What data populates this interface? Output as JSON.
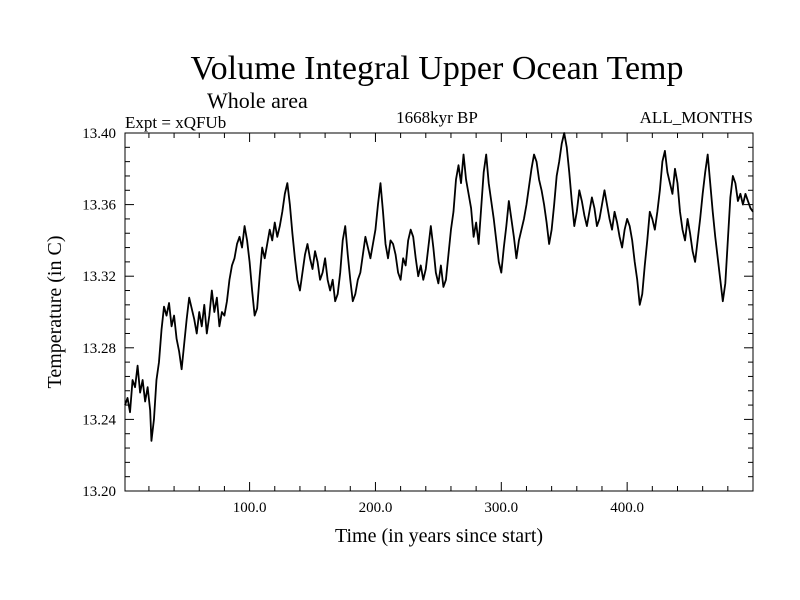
{
  "chart_data": {
    "type": "line",
    "title": "Volume Integral Upper Ocean Temp",
    "subtitle": "Whole area",
    "left_label": "Expt = xQFUb",
    "center_label": "1668kyr BP",
    "right_label": "ALL_MONTHS",
    "xlabel": "Time (in years since start)",
    "ylabel": "Temperature (in C)",
    "xlim": [
      1,
      500
    ],
    "ylim": [
      13.2,
      13.4
    ],
    "x_ticks": [
      {
        "value": 100,
        "label": "100.0"
      },
      {
        "value": 200,
        "label": "200.0"
      },
      {
        "value": 300,
        "label": "300.0"
      },
      {
        "value": 400,
        "label": "400.0"
      }
    ],
    "y_ticks": [
      {
        "value": 13.2,
        "label": "13.20"
      },
      {
        "value": 13.24,
        "label": "13.24"
      },
      {
        "value": 13.28,
        "label": "13.28"
      },
      {
        "value": 13.32,
        "label": "13.32"
      },
      {
        "value": 13.36,
        "label": "13.36"
      },
      {
        "value": 13.4,
        "label": "13.40"
      }
    ],
    "series": [
      {
        "name": "Volume Integral Upper Ocean Temp",
        "color": "#000000",
        "points": [
          [
            1,
            13.248
          ],
          [
            3,
            13.252
          ],
          [
            5,
            13.244
          ],
          [
            7,
            13.262
          ],
          [
            9,
            13.258
          ],
          [
            11,
            13.27
          ],
          [
            13,
            13.255
          ],
          [
            15,
            13.262
          ],
          [
            17,
            13.25
          ],
          [
            19,
            13.258
          ],
          [
            21,
            13.245
          ],
          [
            22,
            13.228
          ],
          [
            24,
            13.24
          ],
          [
            26,
            13.262
          ],
          [
            28,
            13.272
          ],
          [
            30,
            13.29
          ],
          [
            32,
            13.303
          ],
          [
            34,
            13.298
          ],
          [
            36,
            13.305
          ],
          [
            38,
            13.292
          ],
          [
            40,
            13.298
          ],
          [
            42,
            13.285
          ],
          [
            44,
            13.278
          ],
          [
            46,
            13.268
          ],
          [
            48,
            13.282
          ],
          [
            50,
            13.296
          ],
          [
            52,
            13.308
          ],
          [
            54,
            13.302
          ],
          [
            56,
            13.296
          ],
          [
            58,
            13.288
          ],
          [
            60,
            13.3
          ],
          [
            62,
            13.292
          ],
          [
            64,
            13.304
          ],
          [
            66,
            13.288
          ],
          [
            68,
            13.298
          ],
          [
            70,
            13.312
          ],
          [
            72,
            13.3
          ],
          [
            74,
            13.308
          ],
          [
            76,
            13.292
          ],
          [
            78,
            13.3
          ],
          [
            80,
            13.298
          ],
          [
            82,
            13.306
          ],
          [
            84,
            13.318
          ],
          [
            86,
            13.326
          ],
          [
            88,
            13.33
          ],
          [
            90,
            13.338
          ],
          [
            92,
            13.342
          ],
          [
            94,
            13.336
          ],
          [
            96,
            13.348
          ],
          [
            98,
            13.34
          ],
          [
            100,
            13.328
          ],
          [
            102,
            13.312
          ],
          [
            104,
            13.298
          ],
          [
            106,
            13.302
          ],
          [
            108,
            13.32
          ],
          [
            110,
            13.336
          ],
          [
            112,
            13.33
          ],
          [
            114,
            13.338
          ],
          [
            116,
            13.346
          ],
          [
            118,
            13.34
          ],
          [
            120,
            13.35
          ],
          [
            122,
            13.342
          ],
          [
            124,
            13.348
          ],
          [
            126,
            13.356
          ],
          [
            128,
            13.366
          ],
          [
            130,
            13.372
          ],
          [
            132,
            13.36
          ],
          [
            134,
            13.344
          ],
          [
            136,
            13.33
          ],
          [
            138,
            13.318
          ],
          [
            140,
            13.312
          ],
          [
            142,
            13.322
          ],
          [
            144,
            13.332
          ],
          [
            146,
            13.338
          ],
          [
            148,
            13.33
          ],
          [
            150,
            13.324
          ],
          [
            152,
            13.334
          ],
          [
            154,
            13.328
          ],
          [
            156,
            13.318
          ],
          [
            158,
            13.322
          ],
          [
            160,
            13.33
          ],
          [
            162,
            13.318
          ],
          [
            164,
            13.312
          ],
          [
            166,
            13.318
          ],
          [
            168,
            13.306
          ],
          [
            170,
            13.31
          ],
          [
            172,
            13.322
          ],
          [
            174,
            13.34
          ],
          [
            176,
            13.348
          ],
          [
            178,
            13.332
          ],
          [
            180,
            13.318
          ],
          [
            182,
            13.306
          ],
          [
            184,
            13.31
          ],
          [
            186,
            13.318
          ],
          [
            188,
            13.322
          ],
          [
            190,
            13.332
          ],
          [
            192,
            13.342
          ],
          [
            194,
            13.336
          ],
          [
            196,
            13.33
          ],
          [
            198,
            13.338
          ],
          [
            200,
            13.346
          ],
          [
            202,
            13.36
          ],
          [
            204,
            13.372
          ],
          [
            206,
            13.356
          ],
          [
            208,
            13.338
          ],
          [
            210,
            13.33
          ],
          [
            212,
            13.34
          ],
          [
            214,
            13.338
          ],
          [
            216,
            13.332
          ],
          [
            218,
            13.322
          ],
          [
            220,
            13.318
          ],
          [
            222,
            13.33
          ],
          [
            224,
            13.326
          ],
          [
            226,
            13.34
          ],
          [
            228,
            13.346
          ],
          [
            230,
            13.342
          ],
          [
            232,
            13.33
          ],
          [
            234,
            13.32
          ],
          [
            236,
            13.326
          ],
          [
            238,
            13.318
          ],
          [
            240,
            13.324
          ],
          [
            242,
            13.336
          ],
          [
            244,
            13.348
          ],
          [
            246,
            13.336
          ],
          [
            248,
            13.322
          ],
          [
            250,
            13.316
          ],
          [
            252,
            13.326
          ],
          [
            254,
            13.314
          ],
          [
            256,
            13.318
          ],
          [
            258,
            13.332
          ],
          [
            260,
            13.346
          ],
          [
            262,
            13.356
          ],
          [
            264,
            13.374
          ],
          [
            266,
            13.382
          ],
          [
            268,
            13.372
          ],
          [
            270,
            13.388
          ],
          [
            272,
            13.374
          ],
          [
            274,
            13.366
          ],
          [
            276,
            13.358
          ],
          [
            278,
            13.342
          ],
          [
            280,
            13.35
          ],
          [
            282,
            13.338
          ],
          [
            284,
            13.358
          ],
          [
            286,
            13.378
          ],
          [
            288,
            13.388
          ],
          [
            290,
            13.372
          ],
          [
            292,
            13.362
          ],
          [
            294,
            13.352
          ],
          [
            296,
            13.34
          ],
          [
            298,
            13.328
          ],
          [
            300,
            13.322
          ],
          [
            302,
            13.336
          ],
          [
            304,
            13.348
          ],
          [
            306,
            13.362
          ],
          [
            308,
            13.352
          ],
          [
            310,
            13.342
          ],
          [
            312,
            13.33
          ],
          [
            314,
            13.34
          ],
          [
            316,
            13.346
          ],
          [
            318,
            13.352
          ],
          [
            320,
            13.36
          ],
          [
            322,
            13.37
          ],
          [
            324,
            13.38
          ],
          [
            326,
            13.388
          ],
          [
            328,
            13.384
          ],
          [
            330,
            13.374
          ],
          [
            332,
            13.368
          ],
          [
            334,
            13.36
          ],
          [
            336,
            13.35
          ],
          [
            338,
            13.338
          ],
          [
            340,
            13.346
          ],
          [
            342,
            13.36
          ],
          [
            344,
            13.376
          ],
          [
            346,
            13.384
          ],
          [
            348,
            13.394
          ],
          [
            350,
            13.4
          ],
          [
            352,
            13.392
          ],
          [
            354,
            13.378
          ],
          [
            356,
            13.362
          ],
          [
            358,
            13.348
          ],
          [
            360,
            13.356
          ],
          [
            362,
            13.368
          ],
          [
            364,
            13.362
          ],
          [
            366,
            13.354
          ],
          [
            368,
            13.348
          ],
          [
            370,
            13.356
          ],
          [
            372,
            13.364
          ],
          [
            374,
            13.358
          ],
          [
            376,
            13.348
          ],
          [
            378,
            13.352
          ],
          [
            380,
            13.36
          ],
          [
            382,
            13.368
          ],
          [
            384,
            13.36
          ],
          [
            386,
            13.352
          ],
          [
            388,
            13.346
          ],
          [
            390,
            13.356
          ],
          [
            392,
            13.35
          ],
          [
            394,
            13.342
          ],
          [
            396,
            13.336
          ],
          [
            398,
            13.346
          ],
          [
            400,
            13.352
          ],
          [
            402,
            13.348
          ],
          [
            404,
            13.34
          ],
          [
            406,
            13.328
          ],
          [
            408,
            13.318
          ],
          [
            410,
            13.304
          ],
          [
            412,
            13.31
          ],
          [
            414,
            13.326
          ],
          [
            416,
            13.34
          ],
          [
            418,
            13.356
          ],
          [
            420,
            13.352
          ],
          [
            422,
            13.346
          ],
          [
            424,
            13.356
          ],
          [
            426,
            13.368
          ],
          [
            428,
            13.384
          ],
          [
            430,
            13.39
          ],
          [
            432,
            13.378
          ],
          [
            434,
            13.372
          ],
          [
            436,
            13.366
          ],
          [
            438,
            13.38
          ],
          [
            440,
            13.372
          ],
          [
            442,
            13.356
          ],
          [
            444,
            13.346
          ],
          [
            446,
            13.34
          ],
          [
            448,
            13.352
          ],
          [
            450,
            13.344
          ],
          [
            452,
            13.334
          ],
          [
            454,
            13.328
          ],
          [
            456,
            13.34
          ],
          [
            458,
            13.352
          ],
          [
            460,
            13.366
          ],
          [
            462,
            13.378
          ],
          [
            464,
            13.388
          ],
          [
            466,
            13.372
          ],
          [
            468,
            13.356
          ],
          [
            470,
            13.342
          ],
          [
            472,
            13.33
          ],
          [
            474,
            13.318
          ],
          [
            476,
            13.306
          ],
          [
            478,
            13.316
          ],
          [
            480,
            13.34
          ],
          [
            482,
            13.364
          ],
          [
            484,
            13.376
          ],
          [
            486,
            13.372
          ],
          [
            488,
            13.362
          ],
          [
            490,
            13.366
          ],
          [
            492,
            13.36
          ],
          [
            494,
            13.366
          ],
          [
            496,
            13.362
          ],
          [
            498,
            13.358
          ],
          [
            500,
            13.356
          ]
        ]
      }
    ]
  }
}
